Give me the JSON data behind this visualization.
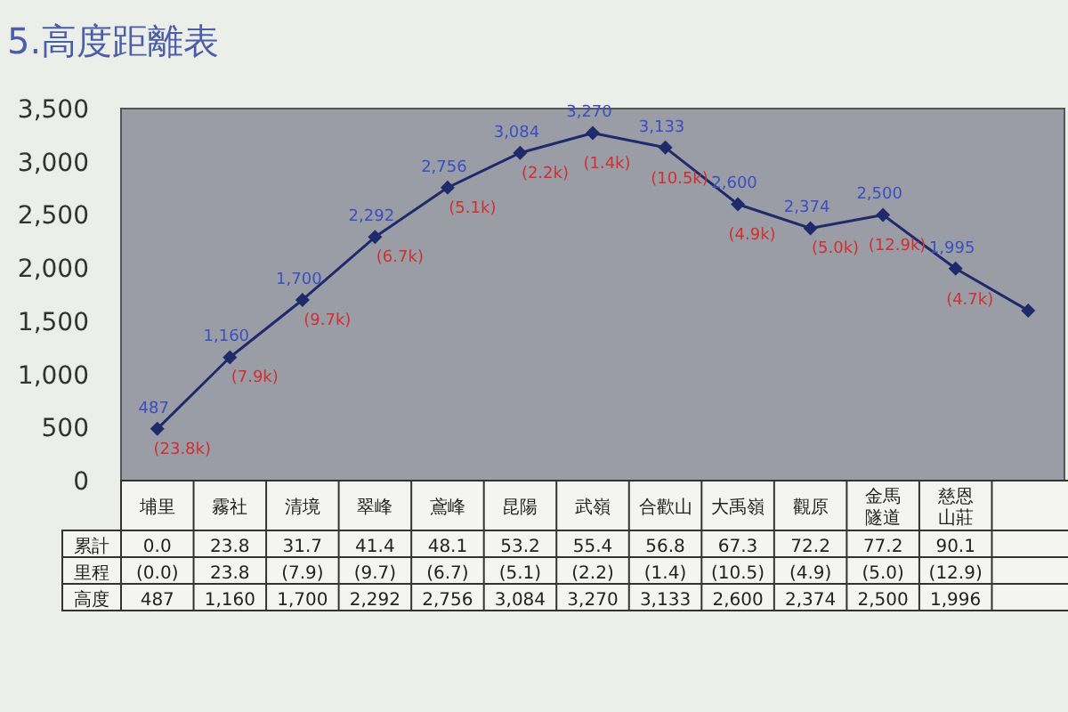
{
  "chart_data": {
    "type": "line",
    "title": "5.高度距離表",
    "categories": [
      "埔里",
      "霧社",
      "清境",
      "翠峰",
      "鳶峰",
      "昆陽",
      "武嶺",
      "合歡山",
      "大禹嶺",
      "觀原",
      "金馬隧道",
      "慈恩山莊",
      null
    ],
    "values": [
      487,
      1160,
      1700,
      2292,
      2756,
      3084,
      3270,
      3133,
      2600,
      2374,
      2500,
      1995,
      1600
    ],
    "color": "#1f2a6b",
    "marker": "diamond",
    "grid": false,
    "ylim": [
      0,
      3500
    ],
    "yticks": [
      {
        "value": 0,
        "label": "0"
      },
      {
        "value": 500,
        "label": "500"
      },
      {
        "value": 1000,
        "label": "1,000"
      },
      {
        "value": 1500,
        "label": "1,500"
      },
      {
        "value": 2000,
        "label": "2,000"
      },
      {
        "value": 2500,
        "label": "2,500"
      },
      {
        "value": 3000,
        "label": "3,000"
      },
      {
        "value": 3500,
        "label": "3,500"
      }
    ],
    "value_labels": [
      "487",
      "1,160",
      "1,700",
      "2,292",
      "2,756",
      "3,084",
      "3,270",
      "3,133",
      "2,600",
      "2,374",
      "2,500",
      "1,995",
      null
    ],
    "annotations": [
      {
        "text": "(23.8k)",
        "x": "埔里",
        "y": 487
      },
      {
        "text": "(7.9k)",
        "x": "霧社",
        "y": 1160
      },
      {
        "text": "(9.7k)",
        "x": "清境",
        "y": 1700
      },
      {
        "text": "(6.7k)",
        "x": "翠峰",
        "y": 2292
      },
      {
        "text": "(5.1k)",
        "x": "鳶峰",
        "y": 2756
      },
      {
        "text": "(2.2k)",
        "x": "昆陽",
        "y": 3084
      },
      {
        "text": "(1.4k)",
        "x": "武嶺",
        "y": 3270
      },
      {
        "text": "(10.5k)",
        "x": "合歡山",
        "y": 3133
      },
      {
        "text": "(4.9k)",
        "x": "大禹嶺",
        "y": 2600
      },
      {
        "text": "(5.0k)",
        "x": "觀原",
        "y": 2374
      },
      {
        "text": "(12.9k)",
        "x": "金馬隧道",
        "y": 2500
      },
      {
        "text": "(4.7k)",
        "x": "慈恩山莊",
        "y": 1995
      },
      "累計",
      "0.0",
      "23.8",
      "31.7",
      "41.4",
      "48.1",
      "53.2",
      "55.4",
      "56.8",
      "67.3",
      "72.2",
      "77.2",
      "90.1",
      "里程",
      "(0.0)",
      "23.8",
      "(7.9)",
      "(9.7)",
      "(6.7)",
      "(5.1)",
      "(2.2)",
      "(1.4)",
      "(10.5)",
      "(4.9)",
      "(5.0)",
      "(12.9)",
      "高度",
      "487",
      "1,160",
      "1,700",
      "2,292",
      "2,756",
      "3,084",
      "3,270",
      "3,133",
      "2,600",
      "2,374",
      "2,500",
      "1,996"
    ]
  }
}
